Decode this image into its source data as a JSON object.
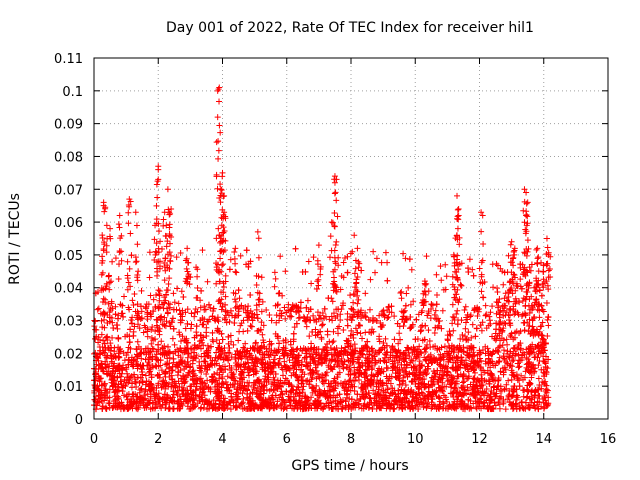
{
  "chart_data": {
    "type": "scatter",
    "title": "Day 001 of 2022, Rate Of TEC Index for receiver hil1",
    "xlabel": "GPS time / hours",
    "ylabel": "ROTI / TECUs",
    "xlim": [
      0,
      16
    ],
    "ylim": [
      0,
      0.11
    ],
    "xticks": [
      "0",
      "2",
      "4",
      "6",
      "8",
      "10",
      "12",
      "14",
      "16"
    ],
    "yticks": [
      "0",
      "0.01",
      "0.02",
      "0.03",
      "0.04",
      "0.05",
      "0.06",
      "0.07",
      "0.08",
      "0.09",
      "0.1",
      "0.11"
    ],
    "grid": true,
    "marker": "+",
    "color": "#ff0000",
    "data_coverage_hours": [
      0,
      14.15
    ],
    "baseline_range": [
      0.003,
      0.035
    ],
    "series": [
      {
        "name": "ROTI",
        "highlighted_points": [
          {
            "x": 0.3,
            "y": 0.066
          },
          {
            "x": 0.3,
            "y": 0.065
          },
          {
            "x": 0.4,
            "y": 0.059
          },
          {
            "x": 0.5,
            "y": 0.058
          },
          {
            "x": 0.8,
            "y": 0.062
          },
          {
            "x": 1.1,
            "y": 0.067
          },
          {
            "x": 1.3,
            "y": 0.063
          },
          {
            "x": 1.9,
            "y": 0.059
          },
          {
            "x": 2.0,
            "y": 0.077
          },
          {
            "x": 2.0,
            "y": 0.076
          },
          {
            "x": 2.0,
            "y": 0.073
          },
          {
            "x": 2.2,
            "y": 0.063
          },
          {
            "x": 2.25,
            "y": 0.059
          },
          {
            "x": 2.3,
            "y": 0.07
          },
          {
            "x": 2.4,
            "y": 0.064
          },
          {
            "x": 2.9,
            "y": 0.052
          },
          {
            "x": 3.85,
            "y": 0.1
          },
          {
            "x": 3.9,
            "y": 0.101
          },
          {
            "x": 3.85,
            "y": 0.092
          },
          {
            "x": 3.95,
            "y": 0.07
          },
          {
            "x": 4.0,
            "y": 0.075
          },
          {
            "x": 4.05,
            "y": 0.068
          },
          {
            "x": 4.05,
            "y": 0.063
          },
          {
            "x": 3.9,
            "y": 0.056
          },
          {
            "x": 4.4,
            "y": 0.052
          },
          {
            "x": 5.1,
            "y": 0.057
          },
          {
            "x": 7.0,
            "y": 0.053
          },
          {
            "x": 7.5,
            "y": 0.074
          },
          {
            "x": 7.55,
            "y": 0.073
          },
          {
            "x": 7.5,
            "y": 0.072
          },
          {
            "x": 7.4,
            "y": 0.06
          },
          {
            "x": 8.1,
            "y": 0.056
          },
          {
            "x": 8.2,
            "y": 0.052
          },
          {
            "x": 10.3,
            "y": 0.042
          },
          {
            "x": 11.3,
            "y": 0.068
          },
          {
            "x": 11.35,
            "y": 0.064
          },
          {
            "x": 11.35,
            "y": 0.062
          },
          {
            "x": 11.3,
            "y": 0.056
          },
          {
            "x": 11.2,
            "y": 0.05
          },
          {
            "x": 12.1,
            "y": 0.062
          },
          {
            "x": 12.05,
            "y": 0.063
          },
          {
            "x": 13.0,
            "y": 0.054
          },
          {
            "x": 13.1,
            "y": 0.052
          },
          {
            "x": 13.4,
            "y": 0.07
          },
          {
            "x": 13.45,
            "y": 0.069
          },
          {
            "x": 13.5,
            "y": 0.066
          },
          {
            "x": 13.45,
            "y": 0.062
          },
          {
            "x": 13.8,
            "y": 0.052
          },
          {
            "x": 14.1,
            "y": 0.055
          },
          {
            "x": 14.15,
            "y": 0.05
          }
        ]
      }
    ]
  }
}
